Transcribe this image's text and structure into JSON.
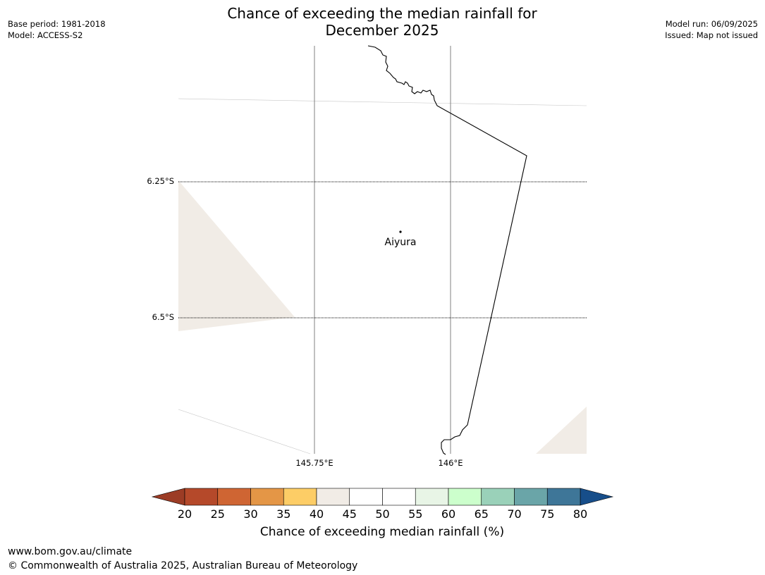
{
  "title": {
    "line1": "Chance of exceeding the median rainfall for",
    "line2": "December 2025"
  },
  "meta_left": {
    "base_period": "Base period: 1981-2018",
    "model": "Model: ACCESS-S2"
  },
  "meta_right": {
    "model_run": "Model run: 06/09/2025",
    "issued": "Issued: Map not issued"
  },
  "map": {
    "lat_labels": [
      "6.25°S",
      "6.5°S"
    ],
    "lon_labels": [
      "145.75°E",
      "146°E"
    ],
    "place": {
      "name": "Aiyura"
    }
  },
  "colorbar": {
    "label": "Chance of exceeding median rainfall (%)",
    "ticks": [
      "20",
      "25",
      "30",
      "35",
      "40",
      "45",
      "50",
      "55",
      "60",
      "65",
      "70",
      "75",
      "80"
    ],
    "colors": [
      "#a9432a",
      "#b5492a",
      "#cf6533",
      "#e49646",
      "#fdcd66",
      "#f1ece6",
      "#ffffff",
      "#ffffff",
      "#e8f5e6",
      "#ccffcc",
      "#9ad1b9",
      "#6aa5a8",
      "#3e7698",
      "#174e8a"
    ],
    "underflow_color": "#9c3c25",
    "overflow_color": "#174e8a"
  },
  "footer": {
    "url": "www.bom.gov.au/climate",
    "copyright": "© Commonwealth of Australia 2025, Australian Bureau of Meteorology"
  }
}
